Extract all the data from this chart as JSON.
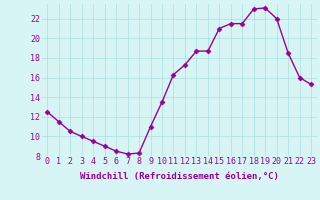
{
  "x": [
    0,
    1,
    2,
    3,
    4,
    5,
    6,
    7,
    8,
    9,
    10,
    11,
    12,
    13,
    14,
    15,
    16,
    17,
    18,
    19,
    20,
    21,
    22,
    23
  ],
  "y": [
    12.5,
    11.5,
    10.5,
    10.0,
    9.5,
    9.0,
    8.5,
    8.2,
    8.3,
    11.0,
    13.5,
    16.3,
    17.3,
    18.7,
    18.7,
    21.0,
    21.5,
    21.5,
    23.0,
    23.1,
    22.0,
    18.5,
    16.0,
    15.3
  ],
  "line_color": "#990099",
  "marker": "D",
  "markersize": 2.5,
  "linewidth": 1.0,
  "background_color": "#d8f5f5",
  "grid_color": "#aadddd",
  "xlabel": "Windchill (Refroidissement éolien,°C)",
  "xlim": [
    -0.5,
    23.5
  ],
  "ylim": [
    8,
    23.5
  ],
  "xtick_labels": [
    "0",
    "1",
    "2",
    "3",
    "4",
    "5",
    "6",
    "7",
    "8",
    "9",
    "10",
    "11",
    "12",
    "13",
    "14",
    "15",
    "16",
    "17",
    "18",
    "19",
    "20",
    "21",
    "22",
    "23"
  ],
  "ytick_values": [
    8,
    10,
    12,
    14,
    16,
    18,
    20,
    22
  ],
  "xlabel_fontsize": 6.5,
  "tick_fontsize": 6.0,
  "label_color": "#990099"
}
